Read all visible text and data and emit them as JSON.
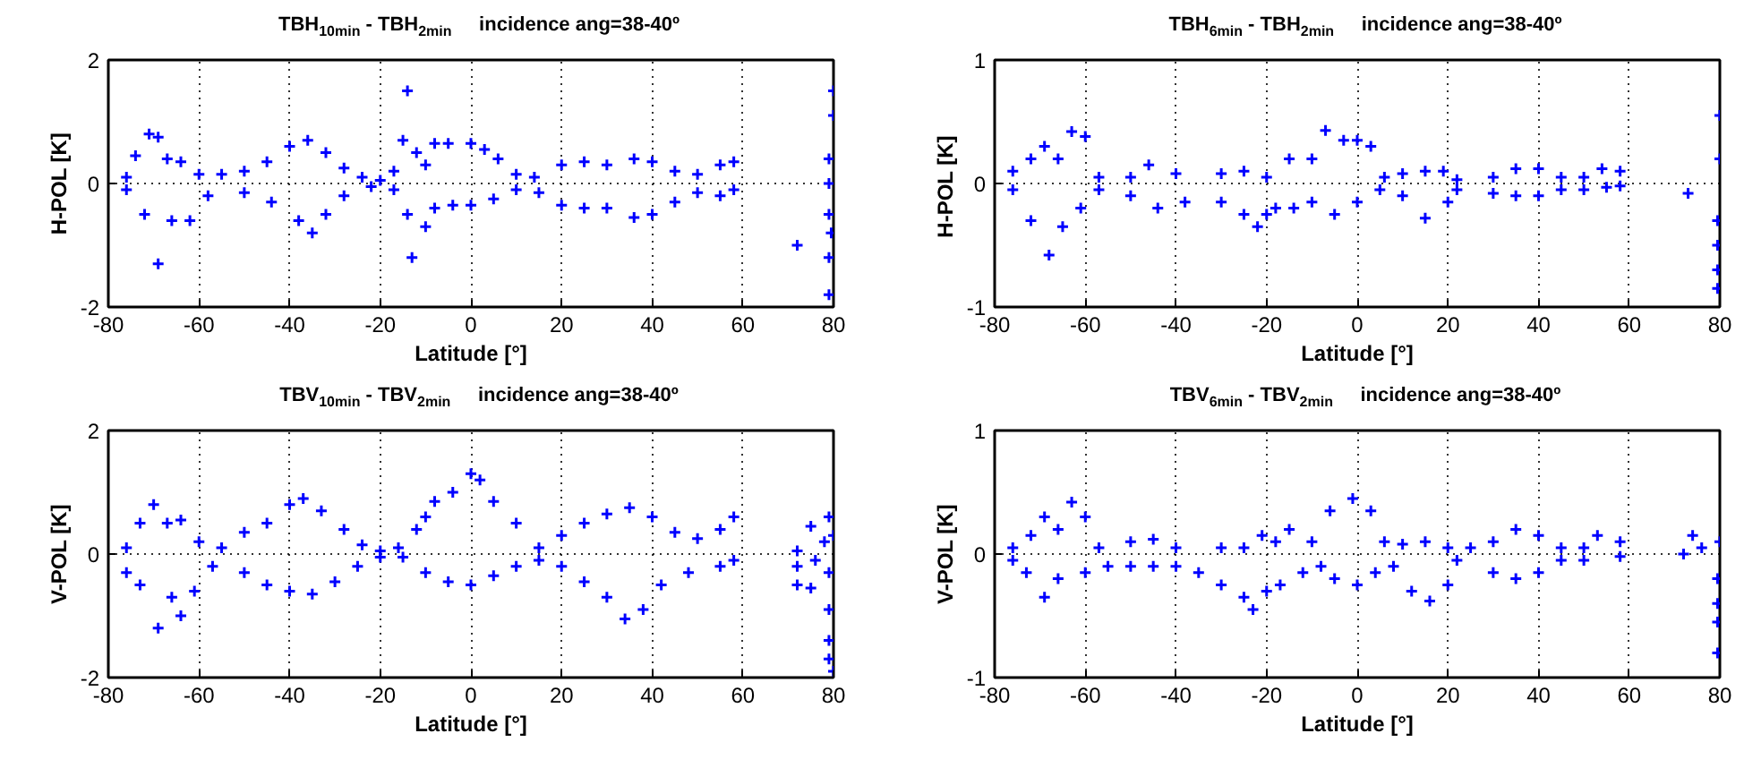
{
  "chart_data": [
    {
      "type": "scatter",
      "title": "TBH$_{10min}$ - TBH$_{2min}$     incidence ang=38-40º",
      "xlabel": "Latitude [°]",
      "ylabel": "H-POL [K]",
      "xlim": [
        -80,
        80
      ],
      "xticks": [
        -80,
        -60,
        -40,
        -20,
        0,
        20,
        40,
        60,
        80
      ],
      "ylim": [
        -2,
        2
      ],
      "yticks": [
        -2,
        0,
        2
      ],
      "grid": true,
      "marker": "cross",
      "series": [
        {
          "color": "#0000ff",
          "x": [
            -76,
            -74,
            -71,
            -69,
            -67,
            -64,
            -60,
            -55,
            -50,
            -45,
            -40,
            -36,
            -32,
            -28,
            -24,
            -20,
            -17,
            -15,
            -14,
            -12,
            -10,
            -8,
            -5,
            0,
            3,
            6,
            10,
            14,
            20,
            25,
            30,
            36,
            40,
            45,
            50,
            55,
            58,
            -76,
            -72,
            -69,
            -66,
            -62,
            -58,
            -50,
            -44,
            -38,
            -35,
            -32,
            -28,
            -22,
            -17,
            -14,
            -13,
            -10,
            -8,
            -4,
            0,
            5,
            10,
            15,
            20,
            25,
            30,
            36,
            40,
            45,
            50,
            55,
            58,
            72,
            79,
            79,
            79,
            79,
            79,
            80,
            80,
            79.5
          ],
          "values": [
            0.1,
            0.45,
            0.8,
            0.75,
            0.4,
            0.35,
            0.15,
            0.15,
            0.2,
            0.35,
            0.6,
            0.7,
            0.5,
            0.25,
            0.1,
            0.05,
            0.2,
            0.7,
            1.5,
            0.5,
            0.3,
            0.65,
            0.65,
            0.65,
            0.55,
            0.4,
            0.15,
            0.1,
            0.3,
            0.35,
            0.3,
            0.4,
            0.35,
            0.2,
            0.15,
            0.3,
            0.35,
            -0.1,
            -0.5,
            -1.3,
            -0.6,
            -0.6,
            -0.2,
            -0.15,
            -0.3,
            -0.6,
            -0.8,
            -0.5,
            -0.2,
            -0.05,
            -0.1,
            -0.5,
            -1.2,
            -0.7,
            -0.4,
            -0.35,
            -0.35,
            -0.25,
            -0.1,
            -0.15,
            -0.35,
            -0.4,
            -0.4,
            -0.55,
            -0.5,
            -0.3,
            -0.15,
            -0.2,
            -0.1,
            -1,
            -1.8,
            -1.2,
            -0.5,
            0,
            0.4,
            1.5,
            1.1,
            -0.8
          ]
        }
      ]
    },
    {
      "type": "scatter",
      "title": "TBH$_{6min}$ - TBH$_{2min}$     incidence ang=38-40º",
      "xlabel": "Latitude [°]",
      "ylabel": "H-POL  [K]",
      "xlim": [
        -80,
        80
      ],
      "xticks": [
        -80,
        -60,
        -40,
        -20,
        0,
        20,
        40,
        60,
        80
      ],
      "ylim": [
        -1,
        1
      ],
      "yticks": [
        -1,
        0,
        1
      ],
      "grid": true,
      "marker": "cross",
      "series": [
        {
          "color": "#0000ff",
          "x": [
            -76,
            -72,
            -69,
            -66,
            -63,
            -60,
            -57,
            -50,
            -46,
            -40,
            -30,
            -25,
            -20,
            -15,
            -10,
            -7,
            -3,
            0,
            3,
            6,
            10,
            15,
            19,
            22,
            30,
            35,
            40,
            45,
            50,
            54,
            58,
            -76,
            -72,
            -68,
            -65,
            -61,
            -57,
            -50,
            -44,
            -38,
            -30,
            -25,
            -22,
            -20,
            -18,
            -14,
            -10,
            -5,
            0,
            5,
            10,
            15,
            20,
            22,
            30,
            35,
            40,
            45,
            50,
            55,
            58,
            73,
            80,
            80,
            79.5,
            79.5,
            79.5,
            79.5
          ],
          "values": [
            0.1,
            0.2,
            0.3,
            0.2,
            0.42,
            0.38,
            0.05,
            0.05,
            0.15,
            0.08,
            0.08,
            0.1,
            0.05,
            0.2,
            0.2,
            0.43,
            0.35,
            0.35,
            0.3,
            0.05,
            0.08,
            0.1,
            0.1,
            0.03,
            0.05,
            0.12,
            0.12,
            0.05,
            0.05,
            0.12,
            0.1,
            -0.05,
            -0.3,
            -0.58,
            -0.35,
            -0.2,
            -0.05,
            -0.1,
            -0.2,
            -0.15,
            -0.15,
            -0.25,
            -0.35,
            -0.25,
            -0.2,
            -0.2,
            -0.15,
            -0.25,
            -0.15,
            -0.05,
            -0.1,
            -0.28,
            -0.15,
            -0.05,
            -0.08,
            -0.1,
            -0.1,
            -0.05,
            -0.05,
            -0.03,
            -0.02,
            -0.08,
            0.55,
            0.2,
            -0.3,
            -0.5,
            -0.7,
            -0.85
          ]
        }
      ]
    },
    {
      "type": "scatter",
      "title": "TBV$_{10min}$ - TBV$_{2min}$     incidence ang=38-40º",
      "xlabel": "Latitude [°]",
      "ylabel": "V-POL [K]",
      "xlim": [
        -80,
        80
      ],
      "xticks": [
        -80,
        -60,
        -40,
        -20,
        0,
        20,
        40,
        60,
        80
      ],
      "ylim": [
        -2,
        2
      ],
      "yticks": [
        -2,
        0,
        2
      ],
      "grid": true,
      "marker": "cross",
      "series": [
        {
          "color": "#0000ff",
          "x": [
            -76,
            -73,
            -70,
            -67,
            -64,
            -60,
            -55,
            -50,
            -45,
            -40,
            -37,
            -33,
            -28,
            -24,
            -20,
            -16,
            -12,
            -10,
            -8,
            -4,
            0,
            2,
            5,
            10,
            15,
            20,
            25,
            30,
            35,
            40,
            45,
            50,
            55,
            58,
            -76,
            -73,
            -69,
            -66,
            -64,
            -61,
            -57,
            -50,
            -45,
            -40,
            -35,
            -30,
            -25,
            -20,
            -15,
            -10,
            -5,
            0,
            5,
            10,
            15,
            20,
            25,
            30,
            34,
            38,
            42,
            48,
            55,
            58,
            72,
            72,
            72,
            75,
            75,
            76,
            78,
            79,
            79,
            79,
            79,
            79,
            80,
            80
          ],
          "values": [
            0.1,
            0.5,
            0.8,
            0.5,
            0.55,
            0.2,
            0.1,
            0.35,
            0.5,
            0.8,
            0.9,
            0.7,
            0.4,
            0.15,
            0.05,
            0.1,
            0.4,
            0.6,
            0.85,
            1.0,
            1.3,
            1.2,
            0.85,
            0.5,
            0.1,
            0.3,
            0.5,
            0.65,
            0.75,
            0.6,
            0.35,
            0.25,
            0.4,
            0.6,
            -0.3,
            -0.5,
            -1.2,
            -0.7,
            -1.0,
            -0.6,
            -0.2,
            -0.3,
            -0.5,
            -0.6,
            -0.65,
            -0.45,
            -0.2,
            -0.05,
            -0.05,
            -0.3,
            -0.45,
            -0.5,
            -0.35,
            -0.2,
            -0.1,
            -0.2,
            -0.45,
            -0.7,
            -1.05,
            -0.9,
            -0.5,
            -0.3,
            -0.2,
            -0.1,
            0.05,
            -0.2,
            -0.5,
            0.45,
            -0.55,
            -0.1,
            0.2,
            0.6,
            -0.3,
            -0.9,
            -1.4,
            -1.7,
            -1.9,
            0.3
          ]
        }
      ]
    },
    {
      "type": "scatter",
      "title": "TBV$_{6min}$ - TBV$_{2min}$     incidence ang=38-40º",
      "xlabel": "Latitude [°]",
      "ylabel": "V-POL [K]",
      "xlim": [
        -80,
        80
      ],
      "xticks": [
        -80,
        -60,
        -40,
        -20,
        0,
        20,
        40,
        60,
        80
      ],
      "ylim": [
        -1,
        1
      ],
      "yticks": [
        -1,
        0,
        1
      ],
      "grid": true,
      "marker": "cross",
      "series": [
        {
          "color": "#0000ff",
          "x": [
            -76,
            -72,
            -69,
            -66,
            -63,
            -60,
            -57,
            -50,
            -45,
            -40,
            -30,
            -25,
            -21,
            -18,
            -15,
            -10,
            -6,
            -1,
            3,
            6,
            10,
            15,
            20,
            25,
            30,
            35,
            40,
            45,
            50,
            53,
            58,
            -76,
            -73,
            -69,
            -66,
            -60,
            -55,
            -50,
            -45,
            -40,
            -35,
            -30,
            -25,
            -23,
            -20,
            -17,
            -12,
            -8,
            -5,
            0,
            4,
            8,
            12,
            16,
            20,
            22,
            30,
            35,
            40,
            45,
            50,
            58,
            72,
            74,
            76,
            80,
            79.5,
            79.5,
            79.5,
            79.5
          ],
          "values": [
            0.05,
            0.15,
            0.3,
            0.2,
            0.42,
            0.3,
            0.05,
            0.1,
            0.12,
            0.05,
            0.05,
            0.05,
            0.15,
            0.1,
            0.2,
            0.1,
            0.35,
            0.45,
            0.35,
            0.1,
            0.08,
            0.1,
            0.05,
            0.05,
            0.1,
            0.2,
            0.15,
            0.05,
            0.05,
            0.15,
            0.1,
            -0.05,
            -0.15,
            -0.35,
            -0.2,
            -0.15,
            -0.1,
            -0.1,
            -0.1,
            -0.1,
            -0.15,
            -0.25,
            -0.35,
            -0.45,
            -0.3,
            -0.25,
            -0.15,
            -0.1,
            -0.2,
            -0.25,
            -0.15,
            -0.1,
            -0.3,
            -0.38,
            -0.25,
            -0.05,
            -0.15,
            -0.2,
            -0.15,
            -0.05,
            -0.05,
            -0.02,
            0,
            0.15,
            0.05,
            0.1,
            -0.2,
            -0.4,
            -0.55,
            -0.8
          ]
        }
      ]
    }
  ]
}
